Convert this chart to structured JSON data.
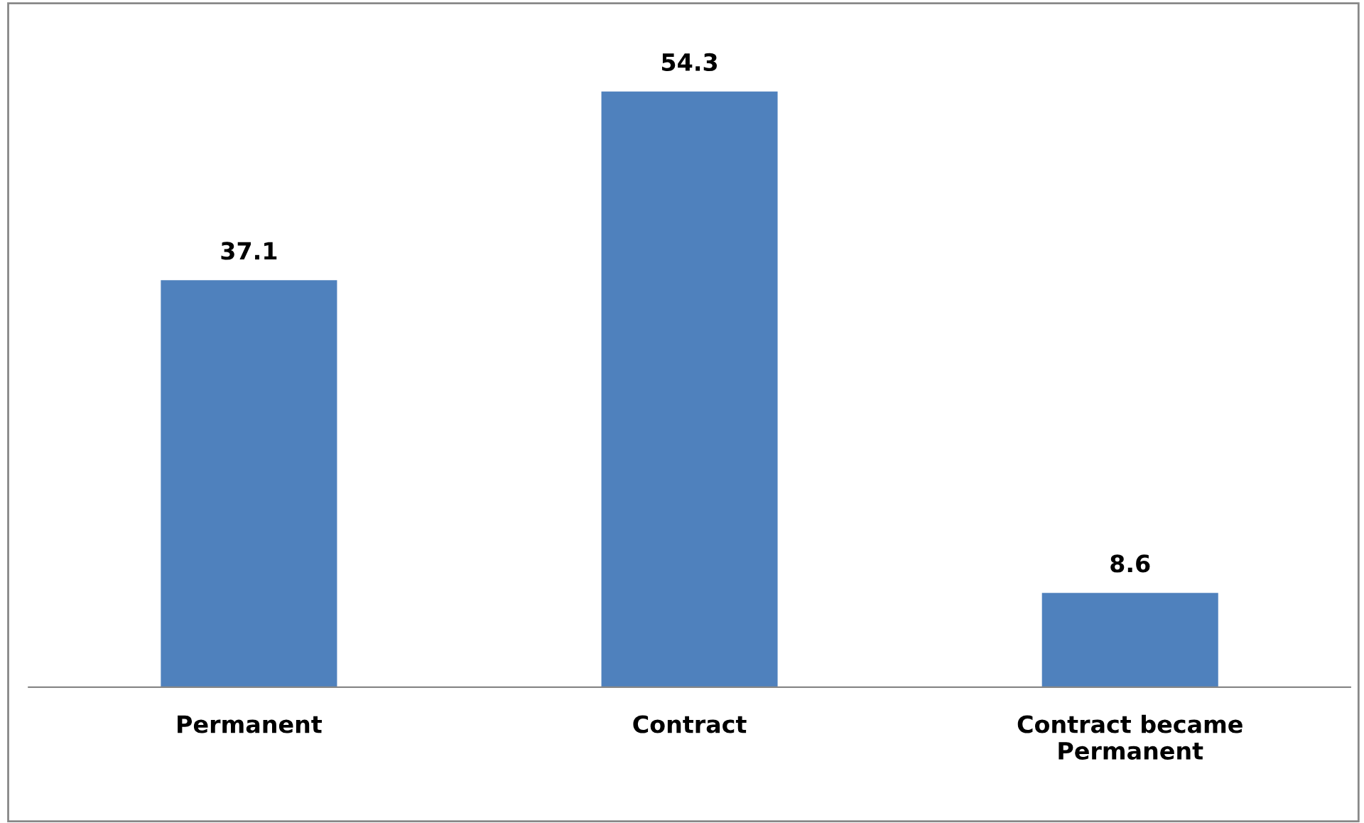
{
  "chart_data": {
    "type": "bar",
    "categories": [
      "Permanent",
      "Contract",
      "Contract became\nPermanent"
    ],
    "values": [
      37.1,
      54.3,
      8.6
    ],
    "color": "#4f81bd",
    "data_labels": true,
    "grid": false,
    "legend": false
  }
}
